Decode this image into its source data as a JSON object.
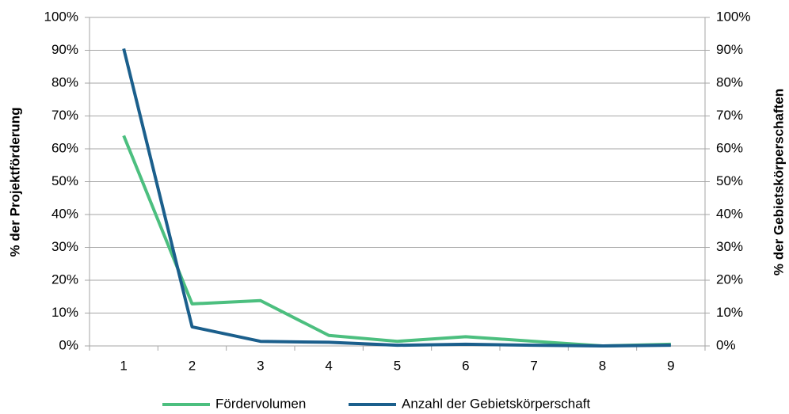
{
  "chart_data": {
    "type": "line",
    "categories": [
      "1",
      "2",
      "3",
      "4",
      "5",
      "6",
      "7",
      "8",
      "9"
    ],
    "series": [
      {
        "name": "Fördervolumen",
        "color": "#4cbf7f",
        "values": [
          64,
          12.8,
          13.8,
          3.2,
          1.4,
          2.8,
          1.4,
          0,
          0.5
        ]
      },
      {
        "name": "Anzahl der Gebietskörperschaft",
        "color": "#1b5f8c",
        "axis": "y2",
        "values": [
          90.5,
          5.8,
          1.4,
          1.1,
          0.2,
          0.5,
          0.2,
          0,
          0.2
        ]
      }
    ],
    "ylabel": "% der Projektförderung",
    "y2label": "% der Gebietskörperschaften",
    "ylim": [
      0,
      100
    ],
    "yticks": [
      {
        "value": 0,
        "label": "0%"
      },
      {
        "value": 10,
        "label": "10%"
      },
      {
        "value": 20,
        "label": "20%"
      },
      {
        "value": 30,
        "label": "30%"
      },
      {
        "value": 40,
        "label": "40%"
      },
      {
        "value": 50,
        "label": "50%"
      },
      {
        "value": 60,
        "label": "60%"
      },
      {
        "value": 70,
        "label": "70%"
      },
      {
        "value": 80,
        "label": "80%"
      },
      {
        "value": 90,
        "label": "90%"
      },
      {
        "value": 100,
        "label": "100%"
      }
    ],
    "y2lim": [
      0,
      100
    ],
    "y2ticks": [
      {
        "value": 0,
        "label": "0%"
      },
      {
        "value": 10,
        "label": "10%"
      },
      {
        "value": 20,
        "label": "20%"
      },
      {
        "value": 30,
        "label": "30%"
      },
      {
        "value": 40,
        "label": "40%"
      },
      {
        "value": 50,
        "label": "50%"
      },
      {
        "value": 60,
        "label": "60%"
      },
      {
        "value": 70,
        "label": "70%"
      },
      {
        "value": 80,
        "label": "80%"
      },
      {
        "value": 90,
        "label": "90%"
      },
      {
        "value": 100,
        "label": "100%"
      }
    ],
    "grid": true,
    "legend": "bottom"
  }
}
